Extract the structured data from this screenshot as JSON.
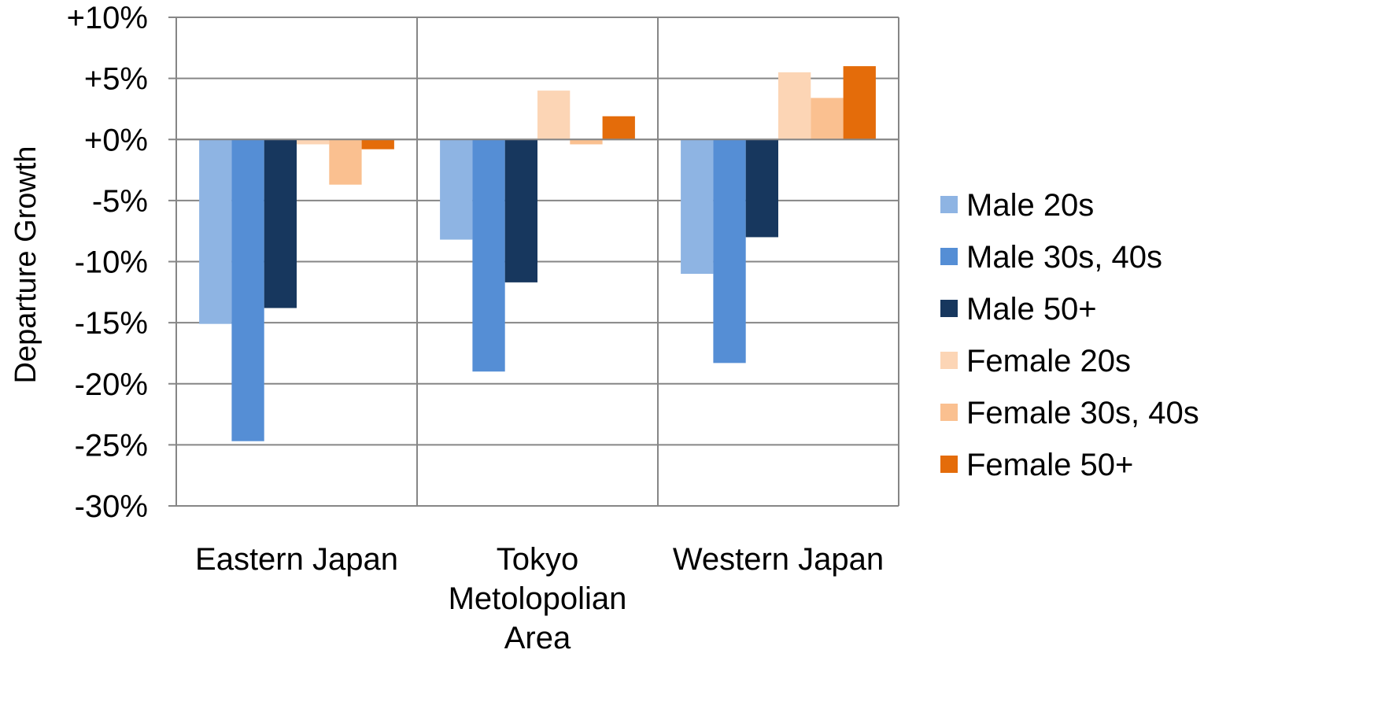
{
  "chart_data": {
    "type": "bar",
    "ylabel": "Departure Growth",
    "xlabel": "",
    "ylim": [
      -30,
      10
    ],
    "y_ticks": [
      10,
      5,
      0,
      -5,
      -10,
      -15,
      -20,
      -25,
      -30
    ],
    "y_tick_labels": [
      "+10%",
      "+5%",
      "+0%",
      "-5%",
      "-10%",
      "-15%",
      "-20%",
      "-25%",
      "-30%"
    ],
    "grid": true,
    "legend_position": "right",
    "categories": [
      [
        "Eastern Japan"
      ],
      [
        "Tokyo",
        "Metolopolian",
        "Area"
      ],
      [
        "Western Japan"
      ]
    ],
    "series": [
      {
        "name": "Male 20s",
        "color": "#8EB4E3",
        "values": [
          -15.1,
          -8.2,
          -11.0
        ]
      },
      {
        "name": "Male 30s, 40s",
        "color": "#558ED5",
        "values": [
          -24.7,
          -19.0,
          -18.3
        ]
      },
      {
        "name": "Male 50+",
        "color": "#17375E",
        "values": [
          -13.8,
          -11.7,
          -8.0
        ]
      },
      {
        "name": "Female 20s",
        "color": "#FCD5B5",
        "values": [
          -0.4,
          4.0,
          5.5
        ]
      },
      {
        "name": "Female 30s, 40s",
        "color": "#FAC090",
        "values": [
          -3.7,
          -0.4,
          3.4
        ]
      },
      {
        "name": "Female 50+",
        "color": "#E46C0A",
        "values": [
          -0.8,
          1.9,
          6.0
        ]
      }
    ]
  }
}
